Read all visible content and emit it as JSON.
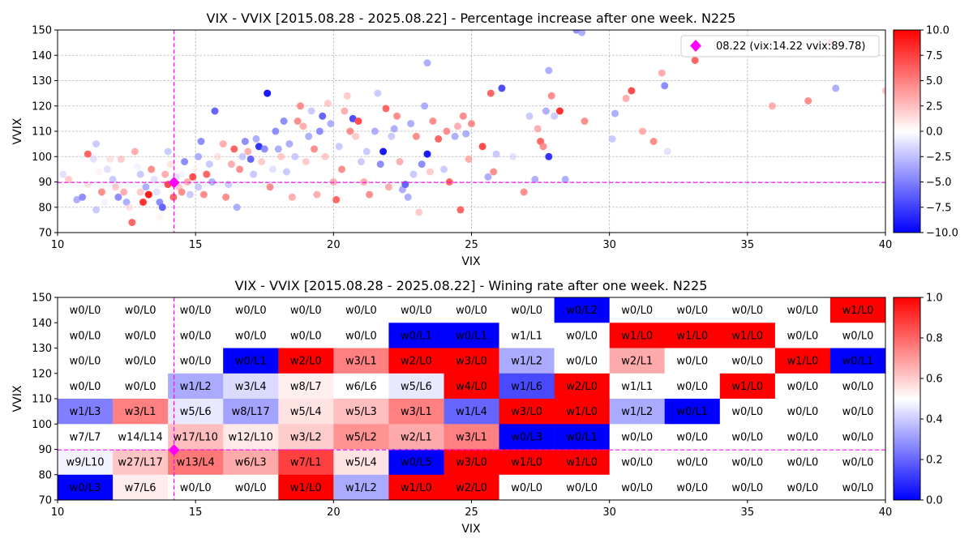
{
  "chart_data": [
    {
      "type": "scatter",
      "title": "VIX - VVIX [2015.08.28 - 2025.08.22]  - Percentage increase after one week. N225",
      "xlabel": "VIX",
      "ylabel": "VVIX",
      "xlim": [
        10,
        40
      ],
      "ylim": [
        70,
        150
      ],
      "xticks": [
        10,
        15,
        20,
        25,
        30,
        35,
        40
      ],
      "yticks": [
        70,
        80,
        90,
        100,
        110,
        120,
        130,
        140,
        150
      ],
      "grid": true,
      "legend": {
        "placement": "top-right",
        "label": "08.22 (vix:14.22 vvix:89.78)"
      },
      "current": {
        "x": 14.22,
        "y": 89.78,
        "color": "#ff00ff"
      },
      "colorbar": {
        "min": -10,
        "max": 10,
        "ticks": [
          "10.0",
          "7.5",
          "5.0",
          "2.5",
          "0.0",
          "−2.5",
          "−5.0",
          "−7.5",
          "−10.0"
        ],
        "low_color": "#0000ff",
        "mid_color": "#ffffff",
        "high_color": "#ff0000"
      },
      "points": [
        [
          10.2,
          93,
          -2
        ],
        [
          10.4,
          91,
          3
        ],
        [
          10.7,
          83,
          -4
        ],
        [
          10.9,
          84,
          -5
        ],
        [
          11.1,
          89,
          2
        ],
        [
          11.1,
          101,
          6
        ],
        [
          11.3,
          99,
          -2
        ],
        [
          11.4,
          105,
          -3
        ],
        [
          11.4,
          79,
          -3
        ],
        [
          11.5,
          94,
          1
        ],
        [
          11.6,
          86,
          5
        ],
        [
          11.7,
          82,
          -1
        ],
        [
          11.8,
          95,
          -2
        ],
        [
          11.9,
          99,
          2
        ],
        [
          12.0,
          91,
          -3
        ],
        [
          12.1,
          88,
          3
        ],
        [
          12.2,
          84,
          -5
        ],
        [
          12.3,
          99,
          3
        ],
        [
          12.4,
          86,
          4
        ],
        [
          12.5,
          82,
          -4
        ],
        [
          12.6,
          80,
          2
        ],
        [
          12.7,
          74,
          6
        ],
        [
          12.8,
          102,
          4
        ],
        [
          12.9,
          96,
          -1
        ],
        [
          13.0,
          93,
          -3
        ],
        [
          13.0,
          86,
          3
        ],
        [
          13.1,
          82,
          8
        ],
        [
          13.2,
          88,
          -4
        ],
        [
          13.3,
          85,
          9
        ],
        [
          13.4,
          95,
          5
        ],
        [
          13.5,
          91,
          -2
        ],
        [
          13.6,
          86,
          -2
        ],
        [
          13.7,
          76,
          1
        ],
        [
          13.7,
          82,
          -5
        ],
        [
          13.8,
          80,
          -6
        ],
        [
          13.9,
          93,
          4
        ],
        [
          14.0,
          89,
          7
        ],
        [
          14.0,
          102,
          -3
        ],
        [
          14.1,
          97,
          2
        ],
        [
          14.2,
          84,
          6
        ],
        [
          14.3,
          92,
          -2
        ],
        [
          14.4,
          88,
          3
        ],
        [
          14.5,
          86,
          5
        ],
        [
          14.5,
          93,
          -1
        ],
        [
          14.6,
          98,
          -5
        ],
        [
          14.7,
          90,
          4
        ],
        [
          14.8,
          85,
          -3
        ],
        [
          14.9,
          92,
          7
        ],
        [
          15.0,
          95,
          1
        ],
        [
          15.1,
          88,
          -3
        ],
        [
          15.1,
          100,
          -4
        ],
        [
          15.2,
          106,
          -5
        ],
        [
          15.3,
          85,
          5
        ],
        [
          15.4,
          93,
          6
        ],
        [
          15.5,
          97,
          -3
        ],
        [
          15.6,
          90,
          -4
        ],
        [
          15.7,
          118,
          -6
        ],
        [
          15.8,
          100,
          2
        ],
        [
          16.0,
          105,
          4
        ],
        [
          16.1,
          84,
          5
        ],
        [
          16.2,
          89,
          -3
        ],
        [
          16.3,
          97,
          4
        ],
        [
          16.4,
          103,
          6
        ],
        [
          16.5,
          80,
          -4
        ],
        [
          16.6,
          95,
          5
        ],
        [
          16.7,
          100,
          -3
        ],
        [
          16.8,
          106,
          -5
        ],
        [
          16.9,
          102,
          4
        ],
        [
          17.0,
          99,
          -6
        ],
        [
          17.1,
          93,
          -3
        ],
        [
          17.2,
          107,
          -4
        ],
        [
          17.3,
          104,
          -8
        ],
        [
          17.4,
          98,
          3
        ],
        [
          17.5,
          103,
          -5
        ],
        [
          17.6,
          125,
          -9
        ],
        [
          17.7,
          88,
          5
        ],
        [
          17.8,
          95,
          -2
        ],
        [
          17.9,
          110,
          -5
        ],
        [
          18.0,
          103,
          -4
        ],
        [
          18.1,
          100,
          3
        ],
        [
          18.2,
          114,
          -5
        ],
        [
          18.3,
          94,
          -3
        ],
        [
          18.4,
          105,
          -4
        ],
        [
          18.5,
          84,
          4
        ],
        [
          18.6,
          100,
          -3
        ],
        [
          18.7,
          114,
          5
        ],
        [
          18.8,
          120,
          5
        ],
        [
          18.9,
          112,
          4
        ],
        [
          19.0,
          98,
          3
        ],
        [
          19.1,
          108,
          -4
        ],
        [
          19.2,
          118,
          -3
        ],
        [
          19.3,
          103,
          5
        ],
        [
          19.4,
          85,
          4
        ],
        [
          19.5,
          110,
          -5
        ],
        [
          19.6,
          116,
          -6
        ],
        [
          19.7,
          100,
          3
        ],
        [
          19.8,
          121,
          3
        ],
        [
          19.9,
          113,
          -4
        ],
        [
          20.0,
          90,
          4
        ],
        [
          20.1,
          83,
          6
        ],
        [
          20.2,
          104,
          -3
        ],
        [
          20.3,
          95,
          5
        ],
        [
          20.4,
          118,
          4
        ],
        [
          20.5,
          124,
          3
        ],
        [
          20.6,
          110,
          5
        ],
        [
          20.7,
          115,
          -7
        ],
        [
          20.8,
          108,
          3
        ],
        [
          20.9,
          114,
          7
        ],
        [
          21.0,
          98,
          -3
        ],
        [
          21.1,
          90,
          4
        ],
        [
          21.2,
          102,
          -3
        ],
        [
          21.3,
          85,
          5
        ],
        [
          21.5,
          110,
          -4
        ],
        [
          21.6,
          125,
          -3
        ],
        [
          21.7,
          97,
          -5
        ],
        [
          21.8,
          102,
          -9
        ],
        [
          21.9,
          119,
          6
        ],
        [
          22.0,
          88,
          4
        ],
        [
          22.1,
          108,
          -3
        ],
        [
          22.2,
          111,
          -4
        ],
        [
          22.3,
          116,
          5
        ],
        [
          22.4,
          98,
          4
        ],
        [
          22.5,
          87,
          -4
        ],
        [
          22.6,
          89,
          -6
        ],
        [
          22.7,
          84,
          -4
        ],
        [
          22.8,
          113,
          -4
        ],
        [
          22.9,
          93,
          -3
        ],
        [
          23.0,
          108,
          5
        ],
        [
          23.1,
          78,
          3
        ],
        [
          23.2,
          97,
          -5
        ],
        [
          23.3,
          120,
          -4
        ],
        [
          23.4,
          137,
          -4
        ],
        [
          23.4,
          101,
          -9
        ],
        [
          23.5,
          94,
          3
        ],
        [
          23.6,
          114,
          5
        ],
        [
          23.8,
          107,
          6
        ],
        [
          24.0,
          95,
          -3
        ],
        [
          24.1,
          110,
          5
        ],
        [
          24.2,
          90,
          6
        ],
        [
          24.4,
          108,
          -4
        ],
        [
          24.5,
          112,
          4
        ],
        [
          24.6,
          79,
          6
        ],
        [
          24.7,
          116,
          5
        ],
        [
          24.8,
          109,
          -4
        ],
        [
          24.9,
          99,
          4
        ],
        [
          25.0,
          113,
          5
        ],
        [
          25.4,
          104,
          7
        ],
        [
          25.6,
          92,
          -4
        ],
        [
          25.7,
          125,
          6
        ],
        [
          25.8,
          94,
          5
        ],
        [
          25.9,
          101,
          -3
        ],
        [
          26.1,
          127,
          -7
        ],
        [
          26.5,
          100,
          -2
        ],
        [
          26.9,
          86,
          5
        ],
        [
          27.1,
          116,
          -3
        ],
        [
          27.3,
          91,
          -4
        ],
        [
          27.4,
          111,
          4
        ],
        [
          27.5,
          106,
          6
        ],
        [
          27.6,
          104,
          5
        ],
        [
          27.7,
          118,
          -4
        ],
        [
          27.8,
          134,
          -4
        ],
        [
          27.8,
          100,
          -8
        ],
        [
          27.9,
          124,
          5
        ],
        [
          28.0,
          116,
          -3
        ],
        [
          28.2,
          118,
          8
        ],
        [
          28.4,
          91,
          -4
        ],
        [
          28.8,
          150,
          -5
        ],
        [
          29.0,
          149,
          -4
        ],
        [
          29.1,
          114,
          5
        ],
        [
          30.1,
          107,
          -3
        ],
        [
          30.2,
          117,
          -4
        ],
        [
          30.6,
          123,
          4
        ],
        [
          30.8,
          126,
          7
        ],
        [
          31.2,
          110,
          4
        ],
        [
          31.6,
          106,
          5
        ],
        [
          31.9,
          133,
          4
        ],
        [
          32.0,
          128,
          -5
        ],
        [
          32.1,
          102,
          -2
        ],
        [
          33.1,
          138,
          6
        ],
        [
          35.9,
          120,
          4
        ],
        [
          37.2,
          122,
          5
        ],
        [
          38.0,
          145,
          5
        ],
        [
          38.2,
          127,
          -4
        ],
        [
          40.0,
          126,
          3
        ]
      ]
    },
    {
      "type": "heatmap",
      "title": "VIX - VVIX [2015.08.28 - 2025.08.22]  - Wining rate after one week. N225",
      "xlabel": "VIX",
      "ylabel": "VVIX",
      "xlim": [
        10,
        40
      ],
      "ylim": [
        70,
        150
      ],
      "xticks": [
        10,
        15,
        20,
        25,
        30,
        35,
        40
      ],
      "yticks": [
        70,
        80,
        90,
        100,
        110,
        120,
        130,
        140,
        150
      ],
      "current": {
        "x": 14.22,
        "y": 89.78,
        "color": "#ff00ff"
      },
      "colorbar": {
        "min": 0,
        "max": 1,
        "ticks": [
          "1.0",
          "0.8",
          "0.6",
          "0.4",
          "0.2",
          "0.0"
        ]
      },
      "x_edges": [
        10,
        12,
        14,
        16,
        18,
        20,
        22,
        24,
        26,
        28,
        30,
        32,
        34,
        36,
        38,
        40
      ],
      "y_edges": [
        150,
        140,
        130,
        120,
        110,
        100,
        90,
        80,
        70
      ],
      "rows": [
        {
          "labels": [
            "w0/L0",
            "w0/L0",
            "w0/L0",
            "w0/L0",
            "w0/L0",
            "w0/L0",
            "w0/L0",
            "w0/L0",
            "w0/L0",
            "w0/L2",
            "w0/L0",
            "w0/L0",
            "w0/L0",
            "w0/L0",
            "w1/L0"
          ],
          "rates": [
            null,
            null,
            null,
            null,
            null,
            null,
            null,
            null,
            null,
            0,
            null,
            null,
            null,
            null,
            1
          ]
        },
        {
          "labels": [
            "w0/L0",
            "w0/L0",
            "w0/L0",
            "w0/L0",
            "w0/L0",
            "w0/L0",
            "w0/L1",
            "w0/L1",
            "w1/L1",
            "w0/L0",
            "w1/L0",
            "w1/L0",
            "w1/L0",
            "w0/L0",
            "w0/L0"
          ],
          "rates": [
            null,
            null,
            null,
            null,
            null,
            null,
            0,
            0,
            0.5,
            null,
            1,
            1,
            1,
            null,
            null
          ]
        },
        {
          "labels": [
            "w0/L0",
            "w0/L0",
            "w0/L0",
            "w0/L1",
            "w2/L0",
            "w3/L1",
            "w2/L0",
            "w3/L0",
            "w1/L2",
            "w0/L0",
            "w2/L1",
            "w0/L0",
            "w0/L0",
            "w1/L0",
            "w0/L1"
          ],
          "rates": [
            null,
            null,
            null,
            0,
            1,
            0.75,
            1,
            1,
            0.333,
            null,
            0.667,
            null,
            null,
            1,
            0
          ]
        },
        {
          "labels": [
            "w0/L0",
            "w0/L0",
            "w1/L2",
            "w3/L4",
            "w8/L7",
            "w6/L6",
            "w5/L6",
            "w4/L0",
            "w1/L6",
            "w2/L0",
            "w1/L1",
            "w0/L0",
            "w1/L0",
            "w0/L0",
            "w0/L0"
          ],
          "rates": [
            null,
            null,
            0.333,
            0.429,
            0.533,
            0.5,
            0.455,
            1,
            0.143,
            1,
            0.5,
            null,
            1,
            null,
            null
          ]
        },
        {
          "labels": [
            "w1/L3",
            "w3/L1",
            "w5/L6",
            "w8/L17",
            "w5/L4",
            "w5/L3",
            "w3/L1",
            "w1/L4",
            "w3/L0",
            "w1/L0",
            "w1/L2",
            "w0/L1",
            "w0/L0",
            "w0/L0",
            "w0/L0"
          ],
          "rates": [
            0.25,
            0.75,
            0.455,
            0.32,
            0.556,
            0.625,
            0.75,
            0.2,
            1,
            1,
            0.333,
            0,
            null,
            null,
            null
          ]
        },
        {
          "labels": [
            "w7/L7",
            "w14/L14",
            "w17/L10",
            "w12/L10",
            "w3/L2",
            "w5/L2",
            "w2/L1",
            "w3/L1",
            "w0/L3",
            "w0/L1",
            "w0/L0",
            "w0/L0",
            "w0/L0",
            "w0/L0",
            "w0/L0"
          ],
          "rates": [
            0.5,
            0.5,
            0.63,
            0.545,
            0.6,
            0.714,
            0.667,
            0.75,
            0,
            0,
            null,
            null,
            null,
            null,
            null
          ]
        },
        {
          "labels": [
            "w9/L10",
            "w27/L17",
            "w13/L4",
            "w6/L3",
            "w7/L1",
            "w5/L4",
            "w0/L5",
            "w3/L0",
            "w1/L0",
            "w1/L0",
            "w0/L0",
            "w0/L0",
            "w0/L0",
            "w0/L0",
            "w0/L0"
          ],
          "rates": [
            0.474,
            0.614,
            0.765,
            0.667,
            0.875,
            0.556,
            0,
            1,
            1,
            1,
            null,
            null,
            null,
            null,
            null
          ]
        },
        {
          "labels": [
            "w0/L3",
            "w7/L6",
            "w0/L0",
            "w0/L0",
            "w1/L0",
            "w1/L2",
            "w1/L0",
            "w2/L0",
            "w0/L0",
            "w0/L0",
            "w0/L0",
            "w0/L0",
            "w0/L0",
            "w0/L0",
            "w0/L0"
          ],
          "rates": [
            0,
            0.538,
            null,
            null,
            1,
            0.333,
            1,
            1,
            null,
            null,
            null,
            null,
            null,
            null,
            null
          ]
        }
      ]
    }
  ]
}
